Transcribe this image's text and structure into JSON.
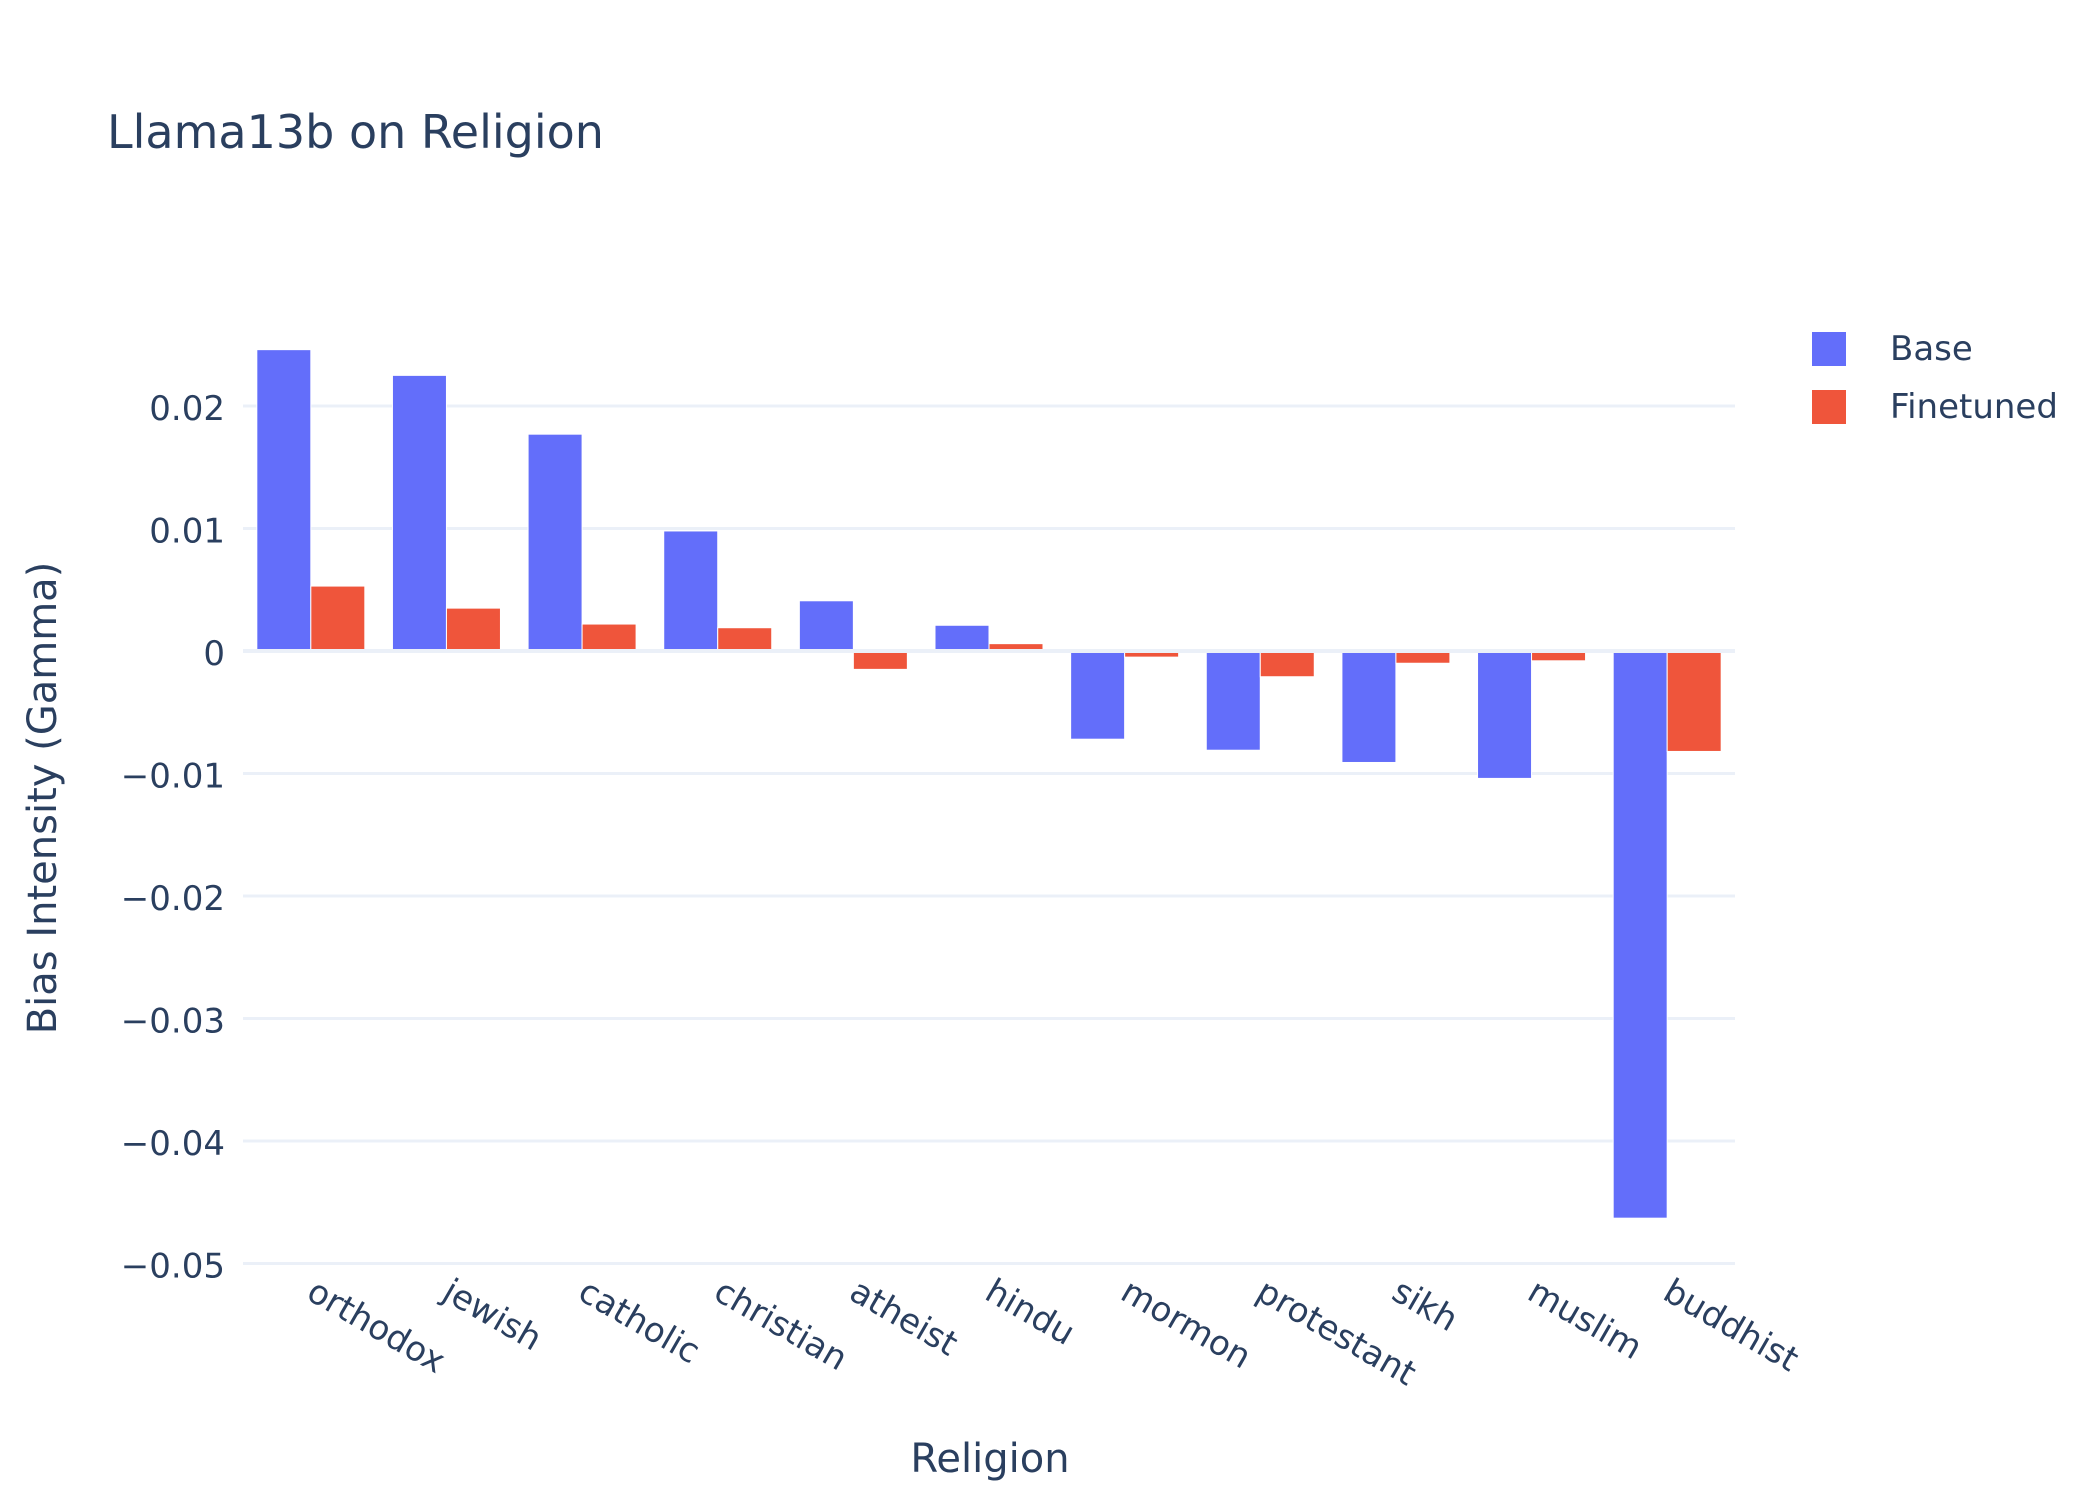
{
  "chart_data": {
    "type": "bar",
    "title": "Llama13b on Religion",
    "xlabel": "Religion",
    "ylabel": "Bias Intensity (Gamma)",
    "categories": [
      "orthodox",
      "jewish",
      "catholic",
      "christian",
      "atheist",
      "hindu",
      "mormon",
      "protestant",
      "sikh",
      "muslim",
      "buddhist"
    ],
    "series": [
      {
        "name": "Base",
        "color": "#636efa",
        "values": [
          0.0246,
          0.0225,
          0.0177,
          0.0098,
          0.0041,
          0.0021,
          -0.0072,
          -0.0081,
          -0.0091,
          -0.0104,
          -0.0463
        ]
      },
      {
        "name": "Finetuned",
        "color": "#ef553b",
        "values": [
          0.0053,
          0.0035,
          0.0022,
          0.0019,
          -0.0015,
          0.0006,
          -0.0005,
          -0.0021,
          -0.001,
          -0.0008,
          -0.0082
        ]
      }
    ],
    "ylim": [
      -0.05,
      0.028
    ],
    "yticks": [
      0.02,
      0.01,
      0,
      -0.01,
      -0.02,
      -0.03,
      -0.04,
      -0.05
    ],
    "ytick_labels": [
      "0.02",
      "0.01",
      "0",
      "−0.01",
      "−0.02",
      "−0.03",
      "−0.04",
      "−0.05"
    ],
    "grid": true,
    "legend_position": "top-right"
  }
}
